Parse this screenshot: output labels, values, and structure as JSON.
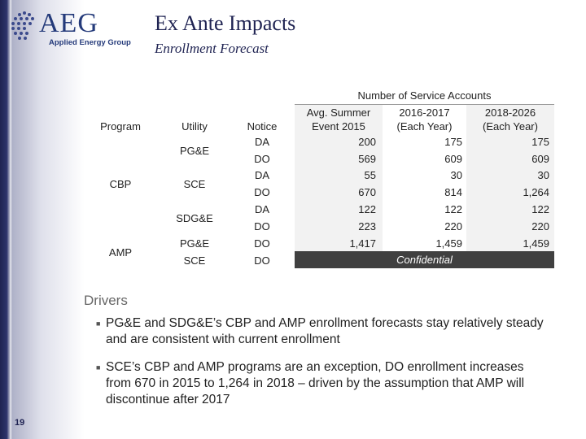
{
  "logo": {
    "text": "AEG",
    "subtitle": "Applied Energy Group"
  },
  "header": {
    "title": "Ex Ante Impacts",
    "subtitle": "Enrollment Forecast"
  },
  "table": {
    "group_header": "Number of Service Accounts",
    "columns": [
      "Program",
      "Utility",
      "Notice",
      "Avg. Summer Event 2015",
      "2016-2017 (Each Year)",
      "2018-2026 (Each Year)"
    ],
    "col_head": {
      "program": "Program",
      "utility": "Utility",
      "notice": "Notice",
      "avg1": "Avg. Summer",
      "avg2": "Event 2015",
      "y1a": "2016-2017",
      "y1b": "(Each Year)",
      "y2a": "2018-2026",
      "y2b": "(Each Year)"
    },
    "programs": {
      "cbp": "CBP",
      "amp": "AMP"
    },
    "utilities": {
      "pge1": "PG&E",
      "sce1": "SCE",
      "sdge": "SDG&E",
      "pge2": "PG&E",
      "sce2": "SCE"
    },
    "rows": [
      {
        "notice": "DA",
        "avg2015": "200",
        "y2016_2017": "175",
        "y2018_2026": "175"
      },
      {
        "notice": "DO",
        "avg2015": "569",
        "y2016_2017": "609",
        "y2018_2026": "609"
      },
      {
        "notice": "DA",
        "avg2015": "55",
        "y2016_2017": "30",
        "y2018_2026": "30"
      },
      {
        "notice": "DO",
        "avg2015": "670",
        "y2016_2017": "814",
        "y2018_2026": "1,264"
      },
      {
        "notice": "DA",
        "avg2015": "122",
        "y2016_2017": "122",
        "y2018_2026": "122"
      },
      {
        "notice": "DO",
        "avg2015": "223",
        "y2016_2017": "220",
        "y2018_2026": "220"
      },
      {
        "notice": "DO",
        "avg2015": "1,417",
        "y2016_2017": "1,459",
        "y2018_2026": "1,459"
      },
      {
        "notice": "DO",
        "avg2015": "",
        "y2016_2017": "",
        "y2018_2026": ""
      }
    ],
    "confidential": "Confidential"
  },
  "drivers": {
    "heading": "Drivers",
    "bullets": [
      "PG&E and SDG&E’s CBP and AMP enrollment forecasts stay relatively steady and are consistent with current enrollment",
      "SCE’s CBP and AMP programs are an exception, DO enrollment increases from 670 in 2015 to 1,264 in 2018 – driven by the assumption that AMP will discontinue after 2017"
    ]
  },
  "footer": {
    "page_number": "19"
  }
}
